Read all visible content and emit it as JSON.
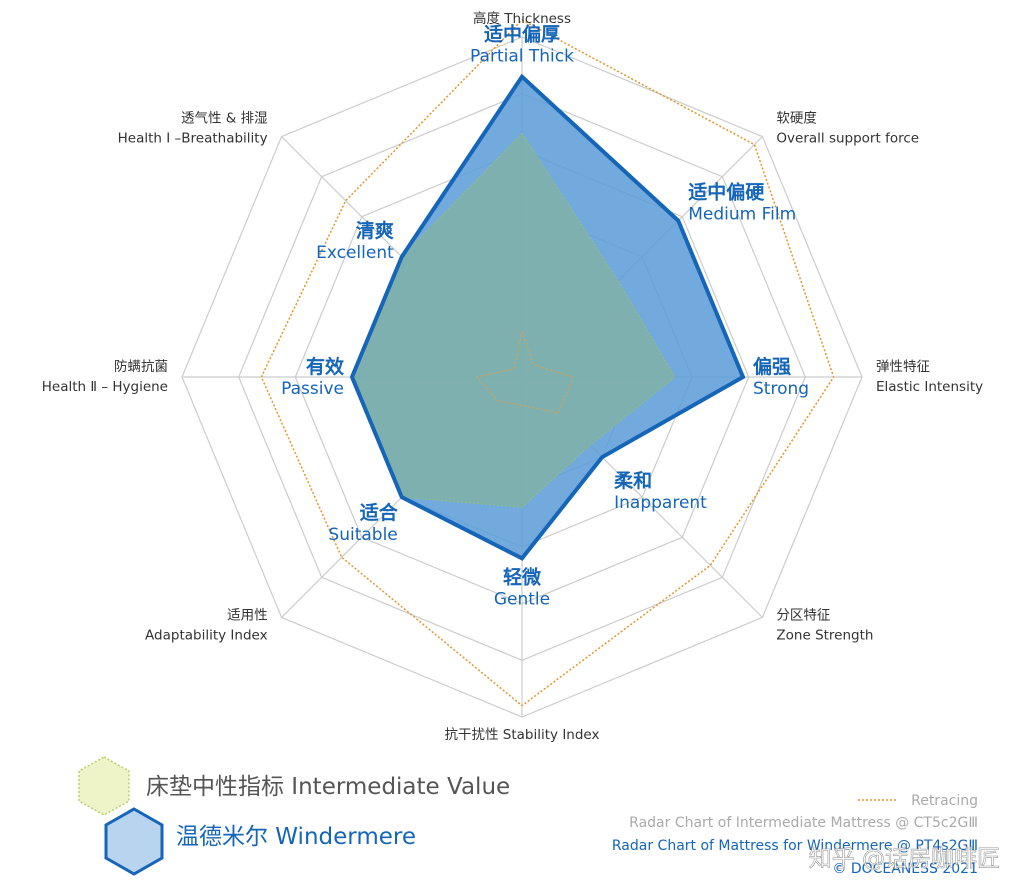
{
  "chart_data": {
    "type": "radar",
    "axes": [
      {
        "cn": "高度",
        "en": "Thickness"
      },
      {
        "cn": "软硬度",
        "en": "Overall support force"
      },
      {
        "cn": "弹性特征",
        "en": "Elastic Intensity"
      },
      {
        "cn": "分区特征",
        "en": "Zone Strength"
      },
      {
        "cn": "抗干扰性",
        "en": "Stability Index"
      },
      {
        "cn": "适用性",
        "en": "Adaptability Index"
      },
      {
        "cn": "防螨抗菌",
        "en": "Health Ⅱ – Hygiene"
      },
      {
        "cn": "透气性 & 排湿",
        "en": "Health Ⅰ –Breathability"
      }
    ],
    "rings": 6,
    "max": 6,
    "series": [
      {
        "name": "床垫中性指标 Intermediate Value",
        "values": [
          4.3,
          2.4,
          2.7,
          1.7,
          2.3,
          3.0,
          3.0,
          3.0
        ],
        "color": "#8fbf7a",
        "fill": "#7eb0aa"
      },
      {
        "name": "温德米尔 Windermere",
        "values": [
          5.3,
          3.9,
          3.9,
          2.0,
          3.2,
          3.0,
          3.0,
          3.0
        ],
        "color": "#1565b8",
        "fill": "#5b9bd8"
      },
      {
        "name": "Retracing",
        "values": [
          6.3,
          5.8,
          5.5,
          4.7,
          5.8,
          4.5,
          4.6,
          4.4
        ],
        "color": "#e0962a"
      },
      {
        "name": "",
        "values": [
          0.8,
          0.3,
          0.9,
          0.9,
          0.5,
          0.6,
          0.8,
          0.2
        ],
        "color": "#d8a050"
      }
    ],
    "value_labels": [
      {
        "cn": "适中偏厚",
        "en": "Partial Thick"
      },
      {
        "cn": "适中偏硬",
        "en": "Medium Film"
      },
      {
        "cn": "偏强",
        "en": "Strong"
      },
      {
        "cn": "柔和",
        "en": "Inapparent"
      },
      {
        "cn": "轻微",
        "en": "Gentle"
      },
      {
        "cn": "适合",
        "en": "Suitable"
      },
      {
        "cn": "有效",
        "en": "Passive"
      },
      {
        "cn": "清爽",
        "en": "Excellent"
      }
    ]
  },
  "legend": {
    "intermediate": "床垫中性指标 Intermediate Value",
    "windermere": "温德米尔 Windermere",
    "retracing": "Retracing"
  },
  "credits": {
    "line1": "Radar Chart of Intermediate Mattress @ CT5c2GⅢ",
    "line2": "Radar Chart of Mattress for Windermere @ PT4s2GⅢ",
    "line3": "© DOCEANESS 2021",
    "watermark": "知乎 @话房咖啡匠"
  },
  "colors": {
    "grid": "#cccccc",
    "blue": "#1565b8",
    "orange": "#e0962a",
    "green_hex": "#e8f0c0"
  }
}
